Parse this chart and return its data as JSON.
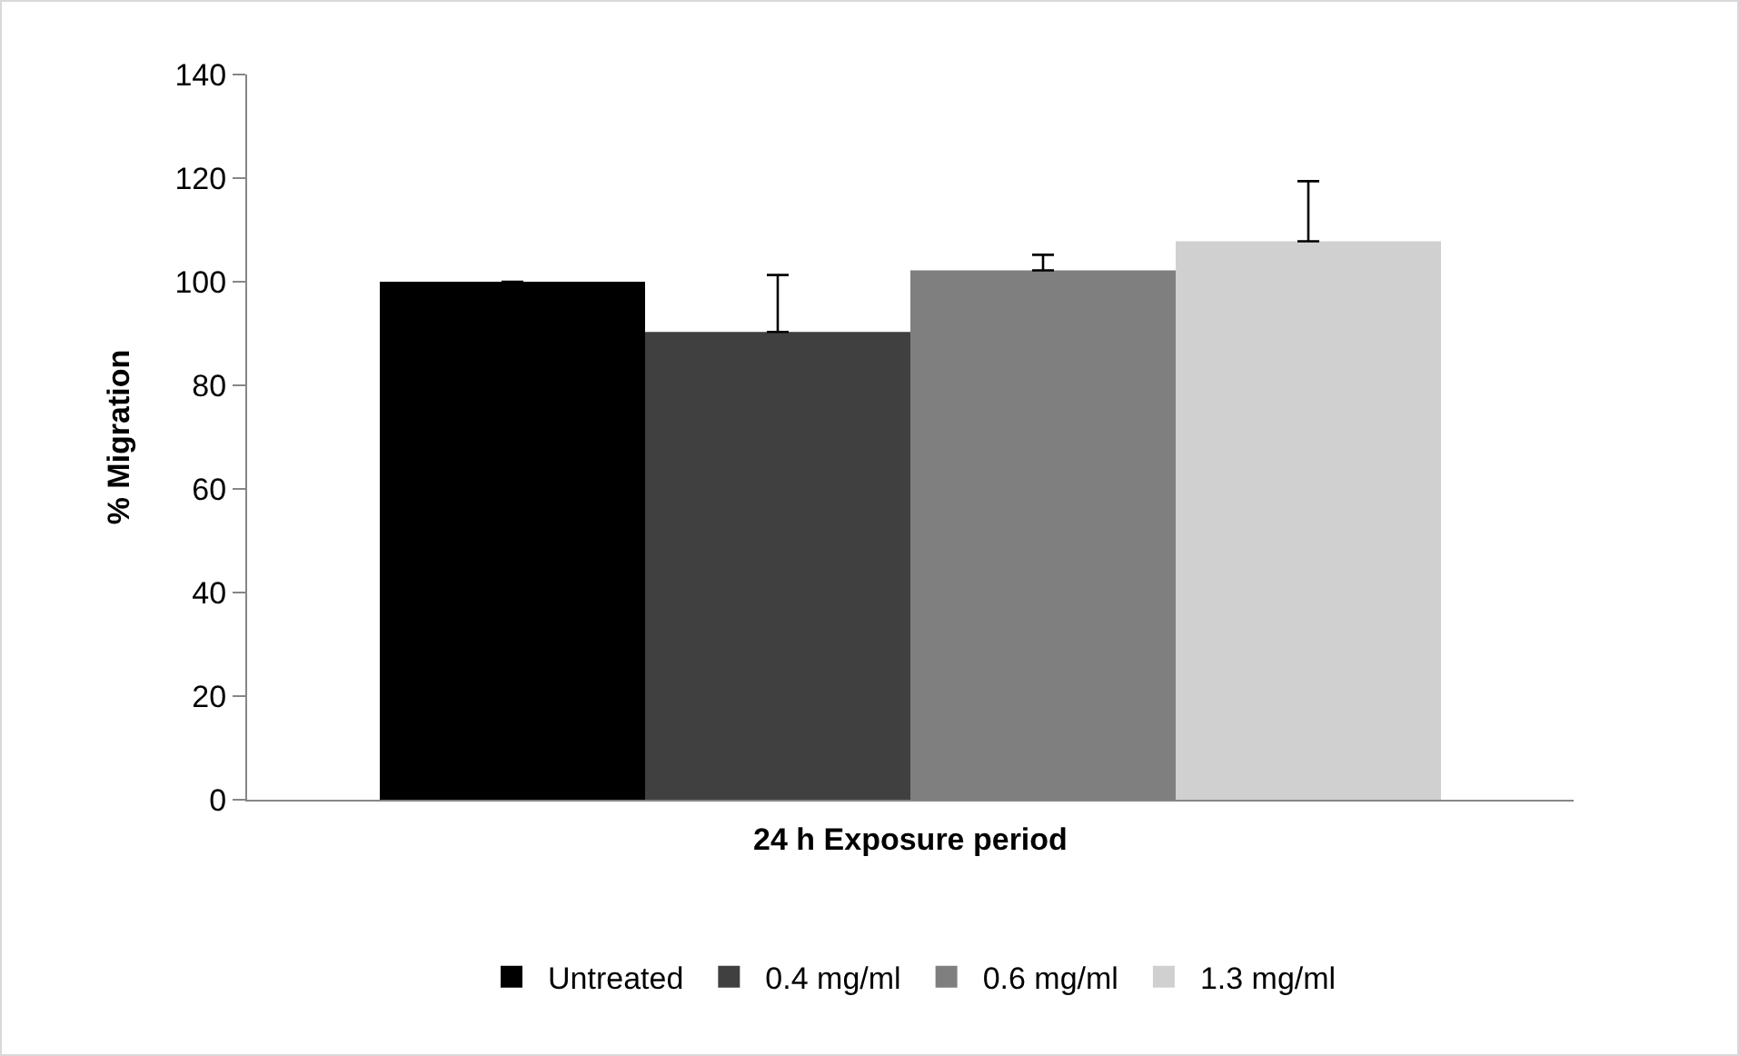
{
  "chart_data": {
    "type": "bar",
    "xlabel": "24 h Exposure period",
    "ylabel": "% Migration",
    "categories": [
      null
    ],
    "series": [
      {
        "name": "Untreated",
        "color": "#000000",
        "values": [
          100
        ],
        "errors": [
          0
        ]
      },
      {
        "name": "0.4 mg/ml",
        "color": "#404040",
        "values": [
          90.3
        ],
        "errors": [
          11
        ]
      },
      {
        "name": "0.6 mg/ml",
        "color": "#7f7f7f",
        "values": [
          102.2
        ],
        "errors": [
          3
        ]
      },
      {
        "name": "1.3 mg/ml",
        "color": "#d0d0d0",
        "values": [
          107.8
        ],
        "errors": [
          11.6
        ]
      }
    ],
    "ylim": [
      0,
      140
    ],
    "yticks": [
      0,
      20,
      40,
      60,
      80,
      100,
      120,
      140
    ],
    "grid": false,
    "legend": "bottom",
    "tick_labels": "y"
  }
}
